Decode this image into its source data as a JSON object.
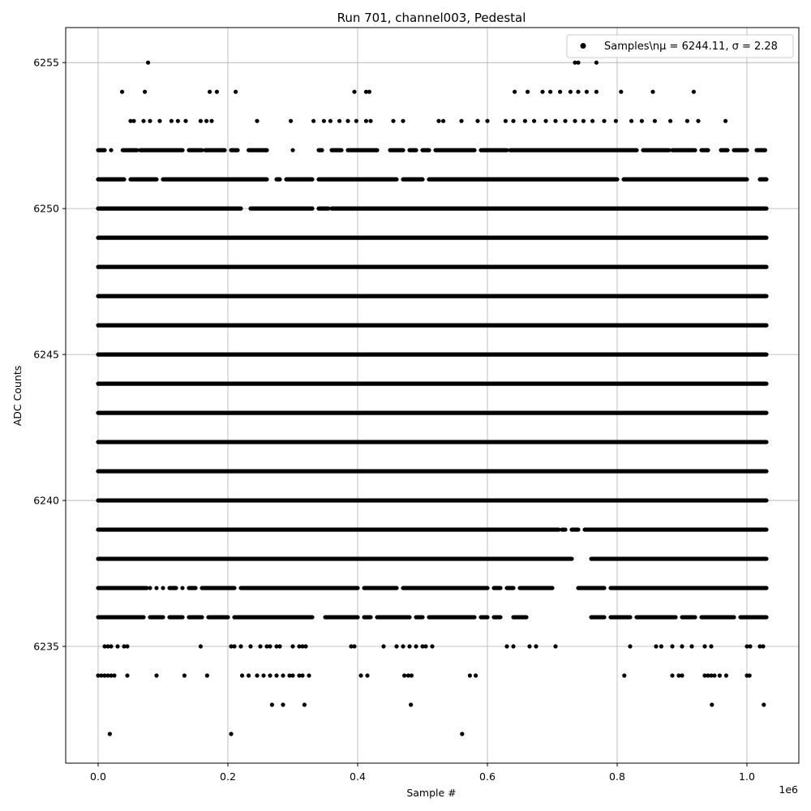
{
  "chart_data": {
    "type": "scatter",
    "title": "Run 701, channel003, Pedestal",
    "xlabel": "Sample #",
    "ylabel": "ADC Counts",
    "x_offset_label": "1e6",
    "xlim": [
      -0.05,
      1.08
    ],
    "ylim": [
      6231,
      6256.2
    ],
    "x_ticks": [
      0.0,
      0.2,
      0.4,
      0.6,
      0.8,
      1.0
    ],
    "x_tick_labels": [
      "0.0",
      "0.2",
      "0.4",
      "0.6",
      "0.8",
      "1.0"
    ],
    "y_ticks": [
      6235,
      6240,
      6245,
      6250,
      6255
    ],
    "y_tick_labels": [
      "6235",
      "6240",
      "6245",
      "6250",
      "6255"
    ],
    "grid": true,
    "legend_position": "top-right",
    "series": [
      {
        "name": "Samples\\nμ = 6244.11, σ = 2.28",
        "color": "#000000",
        "marker": "circle",
        "x_range": [
          0.0,
          1.03
        ],
        "levels": [
          {
            "y": 6255,
            "x": [
              0.077,
              0.735,
              0.74,
              0.768
            ]
          },
          {
            "y": 6254,
            "x": [
              0.037,
              0.072,
              0.172,
              0.183,
              0.212,
              0.395,
              0.413,
              0.418,
              0.642,
              0.662,
              0.685,
              0.697,
              0.712,
              0.728,
              0.74,
              0.753,
              0.768,
              0.806,
              0.855,
              0.918
            ]
          },
          {
            "y": 6253,
            "x": [
              0.05,
              0.055,
              0.07,
              0.08,
              0.095,
              0.113,
              0.123,
              0.135,
              0.158,
              0.167,
              0.175,
              0.245,
              0.297,
              0.332,
              0.348,
              0.358,
              0.372,
              0.385,
              0.398,
              0.413,
              0.42,
              0.455,
              0.47,
              0.525,
              0.532,
              0.56,
              0.585,
              0.6,
              0.628,
              0.64,
              0.658,
              0.672,
              0.69,
              0.705,
              0.72,
              0.735,
              0.748,
              0.762,
              0.78,
              0.798,
              0.822,
              0.838,
              0.858,
              0.882,
              0.908,
              0.925,
              0.967
            ]
          },
          {
            "y": 6252,
            "x_runs": [
              [
                0.0,
                0.01
              ],
              [
                0.02,
                0.02
              ],
              [
                0.038,
                0.06
              ],
              [
                0.065,
                0.13
              ],
              [
                0.14,
                0.16
              ],
              [
                0.165,
                0.195
              ],
              [
                0.205,
                0.215
              ],
              [
                0.232,
                0.26
              ],
              [
                0.3,
                0.3
              ],
              [
                0.34,
                0.345
              ],
              [
                0.36,
                0.375
              ],
              [
                0.385,
                0.43
              ],
              [
                0.45,
                0.47
              ],
              [
                0.48,
                0.49
              ],
              [
                0.5,
                0.51
              ],
              [
                0.52,
                0.58
              ],
              [
                0.59,
                0.63
              ],
              [
                0.635,
                0.83
              ],
              [
                0.84,
                0.88
              ],
              [
                0.885,
                0.92
              ],
              [
                0.93,
                0.94
              ],
              [
                0.96,
                0.97
              ],
              [
                0.98,
                1.0
              ],
              [
                1.015,
                1.028
              ]
            ]
          },
          {
            "y": 6251,
            "x_runs": [
              [
                0.0,
                0.04
              ],
              [
                0.05,
                0.09
              ],
              [
                0.1,
                0.26
              ],
              [
                0.275,
                0.28
              ],
              [
                0.29,
                0.33
              ],
              [
                0.34,
                0.46
              ],
              [
                0.47,
                0.5
              ],
              [
                0.51,
                0.8
              ],
              [
                0.81,
                1.0
              ],
              [
                1.02,
                1.03
              ]
            ]
          },
          {
            "y": 6250,
            "x_runs": [
              [
                0.0,
                0.22
              ],
              [
                0.235,
                0.33
              ],
              [
                0.34,
                0.355
              ],
              [
                0.36,
                1.03
              ]
            ]
          },
          {
            "y": 6249,
            "x_runs": [
              [
                0.0,
                1.03
              ]
            ]
          },
          {
            "y": 6248,
            "x_runs": [
              [
                0.0,
                1.03
              ]
            ]
          },
          {
            "y": 6247,
            "x_runs": [
              [
                0.0,
                1.03
              ]
            ]
          },
          {
            "y": 6246,
            "x_runs": [
              [
                0.0,
                1.03
              ]
            ]
          },
          {
            "y": 6245,
            "x_runs": [
              [
                0.0,
                1.03
              ]
            ]
          },
          {
            "y": 6244,
            "x_runs": [
              [
                0.0,
                1.03
              ]
            ]
          },
          {
            "y": 6243,
            "x_runs": [
              [
                0.0,
                1.03
              ]
            ]
          },
          {
            "y": 6242,
            "x_runs": [
              [
                0.0,
                1.03
              ]
            ]
          },
          {
            "y": 6241,
            "x_runs": [
              [
                0.0,
                1.03
              ]
            ]
          },
          {
            "y": 6240,
            "x_runs": [
              [
                0.0,
                1.03
              ]
            ]
          },
          {
            "y": 6239,
            "x_runs": [
              [
                0.0,
                0.71
              ],
              [
                0.715,
                0.72
              ],
              [
                0.73,
                0.74
              ],
              [
                0.75,
                1.03
              ]
            ]
          },
          {
            "y": 6238,
            "x_runs": [
              [
                0.0,
                0.73
              ],
              [
                0.76,
                1.03
              ]
            ]
          },
          {
            "y": 6237,
            "x_runs": [
              [
                0.0,
                0.075
              ],
              [
                0.08,
                0.08
              ],
              [
                0.09,
                0.09
              ],
              [
                0.1,
                0.1
              ],
              [
                0.11,
                0.12
              ],
              [
                0.13,
                0.13
              ],
              [
                0.14,
                0.15
              ],
              [
                0.16,
                0.21
              ],
              [
                0.22,
                0.4
              ],
              [
                0.41,
                0.46
              ],
              [
                0.47,
                0.6
              ],
              [
                0.61,
                0.62
              ],
              [
                0.63,
                0.64
              ],
              [
                0.65,
                0.7
              ],
              [
                0.74,
                0.78
              ],
              [
                0.79,
                1.03
              ]
            ]
          },
          {
            "y": 6236,
            "x_runs": [
              [
                0.0,
                0.07
              ],
              [
                0.08,
                0.1
              ],
              [
                0.11,
                0.13
              ],
              [
                0.14,
                0.16
              ],
              [
                0.17,
                0.2
              ],
              [
                0.21,
                0.33
              ],
              [
                0.35,
                0.4
              ],
              [
                0.41,
                0.42
              ],
              [
                0.43,
                0.48
              ],
              [
                0.49,
                0.5
              ],
              [
                0.51,
                0.58
              ],
              [
                0.59,
                0.6
              ],
              [
                0.61,
                0.62
              ],
              [
                0.64,
                0.66
              ],
              [
                0.76,
                0.78
              ],
              [
                0.79,
                0.82
              ],
              [
                0.83,
                0.89
              ],
              [
                0.9,
                0.92
              ],
              [
                0.93,
                0.98
              ],
              [
                0.99,
                1.03
              ]
            ]
          },
          {
            "y": 6235,
            "x": [
              0.01,
              0.015,
              0.02,
              0.03,
              0.04,
              0.045,
              0.158,
              0.205,
              0.21,
              0.22,
              0.235,
              0.25,
              0.26,
              0.265,
              0.275,
              0.28,
              0.3,
              0.31,
              0.315,
              0.32,
              0.39,
              0.395,
              0.44,
              0.46,
              0.47,
              0.48,
              0.49,
              0.5,
              0.505,
              0.515,
              0.63,
              0.64,
              0.665,
              0.675,
              0.705,
              0.82,
              0.86,
              0.868,
              0.885,
              0.9,
              0.915,
              0.935,
              0.945,
              1.0,
              1.005,
              1.02,
              1.025
            ]
          },
          {
            "y": 6234,
            "x": [
              0.0,
              0.005,
              0.01,
              0.015,
              0.02,
              0.025,
              0.045,
              0.09,
              0.133,
              0.168,
              0.222,
              0.232,
              0.245,
              0.255,
              0.265,
              0.275,
              0.285,
              0.295,
              0.3,
              0.31,
              0.315,
              0.325,
              0.405,
              0.415,
              0.472,
              0.478,
              0.483,
              0.573,
              0.582,
              0.811,
              0.885,
              0.895,
              0.9,
              0.935,
              0.94,
              0.945,
              0.95,
              0.958,
              0.968,
              1.0,
              1.004
            ]
          },
          {
            "y": 6233,
            "x": [
              0.268,
              0.285,
              0.318,
              0.482,
              0.946,
              1.026
            ]
          },
          {
            "y": 6232,
            "x": [
              0.018,
              0.205,
              0.561
            ]
          }
        ]
      }
    ]
  }
}
